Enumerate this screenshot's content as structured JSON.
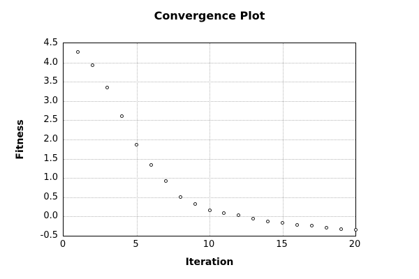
{
  "chart_data": {
    "type": "scatter",
    "title": "Convergence Plot",
    "xlabel": "Iteration",
    "ylabel": "Fitness",
    "x": [
      1,
      2,
      3,
      4,
      5,
      6,
      7,
      8,
      9,
      10,
      11,
      12,
      13,
      14,
      15,
      16,
      17,
      18,
      19,
      20
    ],
    "y": [
      4.28,
      3.93,
      3.35,
      2.6,
      1.86,
      1.33,
      0.92,
      0.5,
      0.33,
      0.17,
      0.09,
      0.03,
      -0.06,
      -0.13,
      -0.16,
      -0.22,
      -0.24,
      -0.3,
      -0.33,
      -0.35
    ],
    "xlim": [
      0,
      20
    ],
    "ylim": [
      -0.5,
      4.5
    ],
    "xticks": [
      0,
      5,
      10,
      15,
      20
    ],
    "yticks": [
      -0.5,
      0.0,
      0.5,
      1.0,
      1.5,
      2.0,
      2.5,
      3.0,
      3.5,
      4.0,
      4.5
    ],
    "grid": true,
    "legend": "none",
    "marker": "open-circle",
    "colors": {
      "marker_stroke": "#1a1a1a",
      "grid": "#b5b5b5",
      "axis": "#000000",
      "text": "#000000",
      "background": "#ffffff"
    }
  }
}
